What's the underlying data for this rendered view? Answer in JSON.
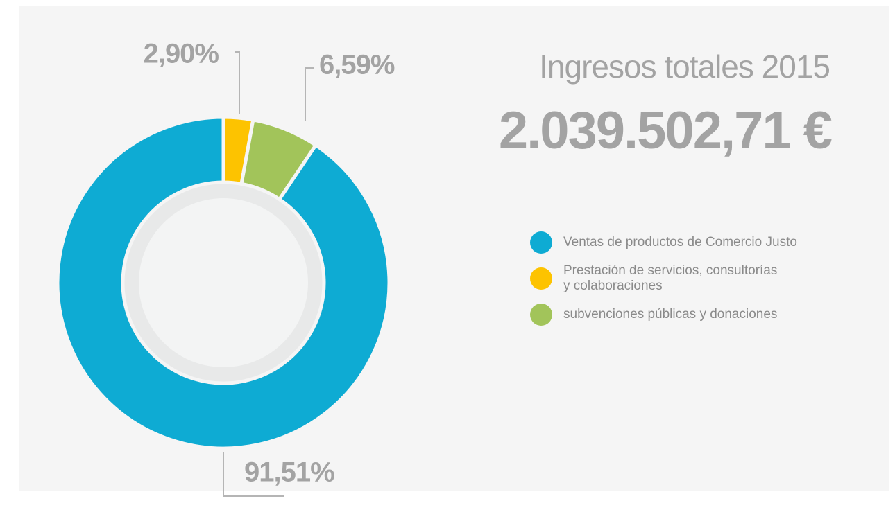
{
  "chart_data": {
    "type": "donut",
    "title": "Ingresos totales 2015",
    "subtitle": "2.039.502,71 €",
    "categories": [
      "Ventas de productos de Comercio Justo",
      "Prestación de servicios, consultorías\ny colaboraciones",
      "subvenciones públicas y donaciones"
    ],
    "values": [
      91.51,
      2.9,
      6.59
    ],
    "value_labels": [
      "91,51%",
      "2,90%",
      "6,59%"
    ],
    "colors": [
      "#0eabd3",
      "#fdc300",
      "#a2c45a"
    ]
  }
}
